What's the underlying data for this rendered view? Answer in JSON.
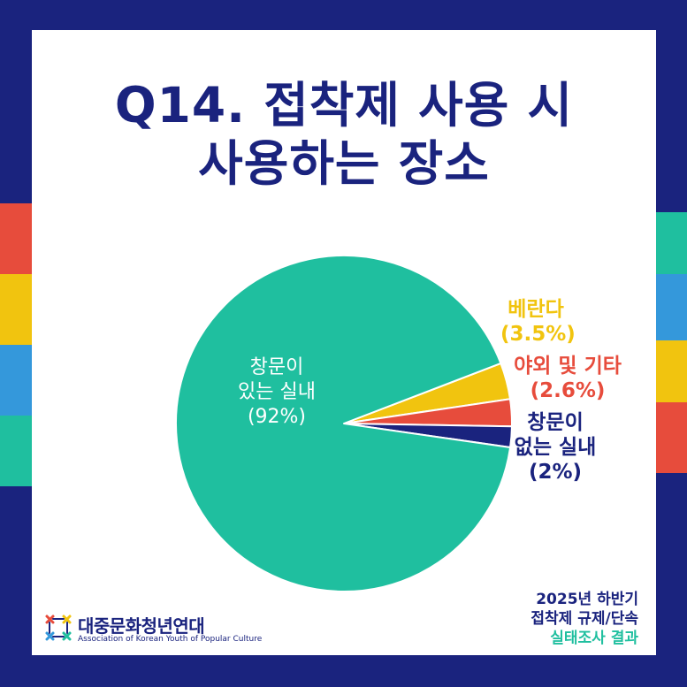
{
  "title": {
    "line1": "Q14. 접착제 사용 시",
    "line2": "사용하는 장소"
  },
  "chart_data": {
    "type": "pie",
    "slices": [
      {
        "label_line1": "창문이",
        "label_line2": "있는 실내",
        "value_text": "(92%)",
        "value": 92,
        "color": "#1fbf9f"
      },
      {
        "label_line1": "베란다",
        "value_text": "(3.5%)",
        "value": 3.5,
        "color": "#f1c40f"
      },
      {
        "label_line1": "야외 및 기타",
        "value_text": "(2.6%)",
        "value": 2.6,
        "color": "#e74c3c"
      },
      {
        "label_line1": "창문이",
        "label_line2": "없는 실내",
        "value_text": "(2%)",
        "value": 2,
        "color": "#1a237e"
      }
    ]
  },
  "brand": {
    "name": "대중문화청년연대",
    "english": "Association of Korean Youth of Popular Culture"
  },
  "survey": {
    "line1": "2025년 하반기",
    "line2": "접착제 규제/단속",
    "line3": "실태조사 결과"
  },
  "colors": {
    "navy": "#1a237e",
    "teal": "#1fbf9f",
    "yellow": "#f1c40f",
    "red": "#e74c3c",
    "blue": "#3498db"
  }
}
